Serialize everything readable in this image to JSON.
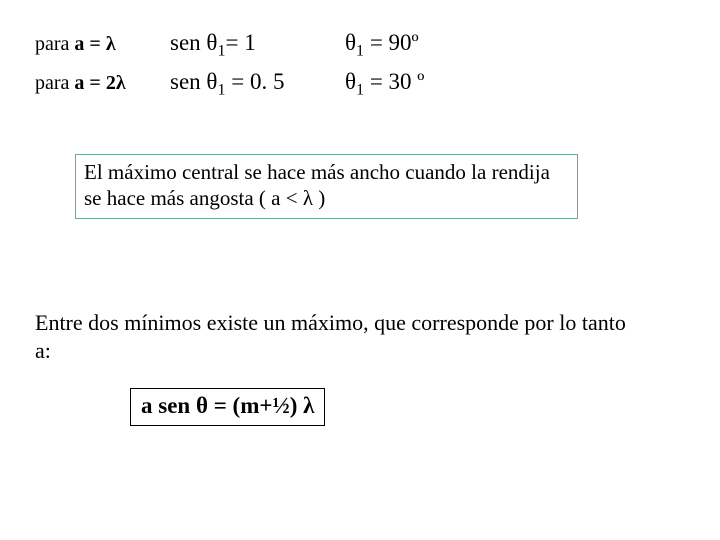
{
  "colors": {
    "background": "#ffffff",
    "text": "#000000",
    "note_border": "#6aa9a0",
    "formula_border": "#000000"
  },
  "fonts": {
    "family": "Times New Roman",
    "body_size_pt": 16,
    "equation_size_pt": 17
  },
  "table": {
    "rows": [
      {
        "condition_prefix": "para ",
        "condition_bold": "a = λ",
        "sen_lhs": "sen θ",
        "sen_sub": "1",
        "sen_rhs": "= 1",
        "ang_lhs": "θ",
        "ang_sub": "1",
        "ang_rhs": " = 90º"
      },
      {
        "condition_prefix": "para ",
        "condition_bold": "a = 2λ",
        "sen_lhs": "sen θ",
        "sen_sub": "1",
        "sen_rhs": " = 0. 5",
        "ang_lhs": "θ",
        "ang_sub": "1",
        "ang_rhs": " = 30 º"
      }
    ]
  },
  "note": {
    "text": "El máximo central se hace más ancho cuando la rendija se hace más angosta ( a < λ )"
  },
  "body": {
    "text": "Entre dos mínimos existe un máximo, que corresponde por lo tanto a:"
  },
  "formula": {
    "text": "a sen θ = (m+½) λ"
  }
}
